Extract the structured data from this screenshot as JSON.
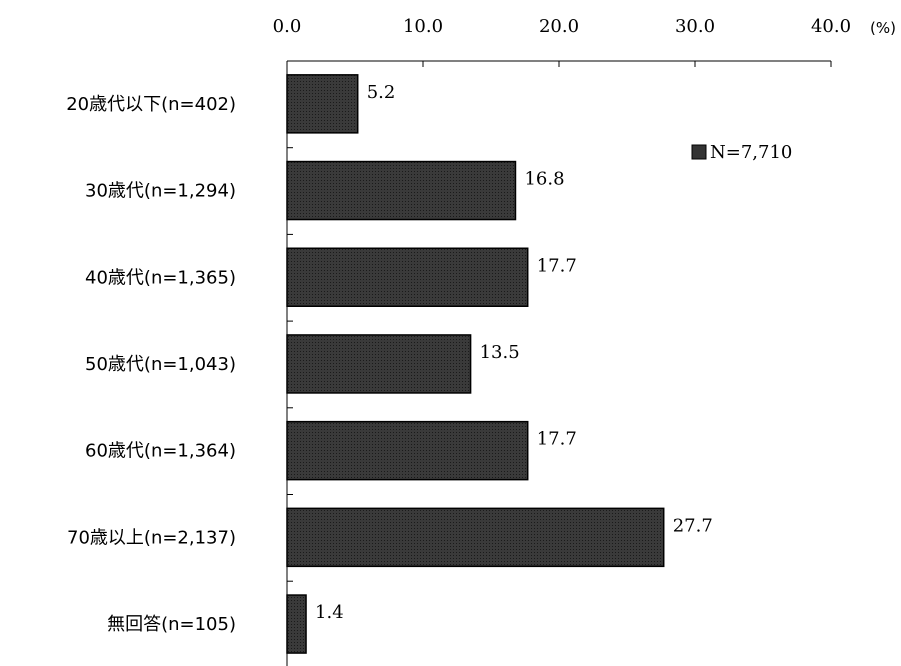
{
  "chart_data": {
    "type": "bar",
    "orientation": "horizontal",
    "unit_label": "(%)",
    "categories": [
      "20歳代以下(n=402)",
      "30歳代(n=1,294)",
      "40歳代(n=1,365)",
      "50歳代(n=1,043)",
      "60歳代(n=1,364)",
      "70歳以上(n=2,137)",
      "無回答(n=105)"
    ],
    "series": [
      {
        "name": "N=7,710",
        "values": [
          5.2,
          16.8,
          17.7,
          13.5,
          17.7,
          27.7,
          1.4
        ]
      }
    ],
    "value_labels": [
      "5.2",
      "16.8",
      "17.7",
      "13.5",
      "17.7",
      "27.7",
      "1.4"
    ],
    "xlim": [
      0,
      40
    ],
    "x_ticks": [
      0,
      10,
      20,
      30,
      40
    ],
    "x_tick_labels": [
      "0.0",
      "10.0",
      "20.0",
      "30.0",
      "40.0"
    ],
    "axis_position": "top",
    "grid": false,
    "legend_position": "top-right",
    "colors": {
      "bar_fill": "#333333",
      "bar_stroke": "#000000",
      "axis": "#000000"
    }
  }
}
